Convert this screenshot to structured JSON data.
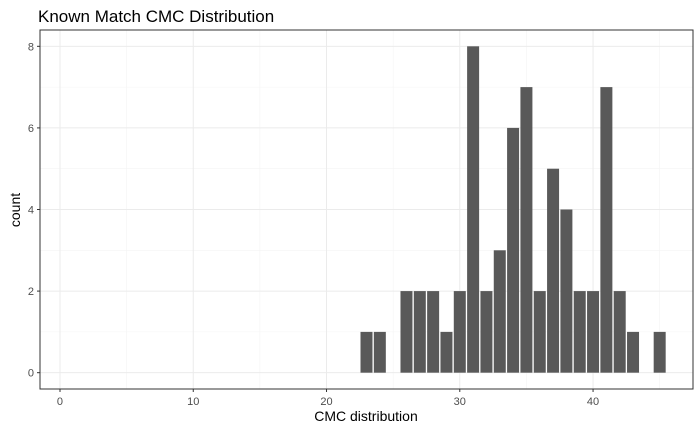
{
  "chart_data": {
    "type": "bar",
    "title": "Known Match CMC Distribution",
    "xlabel": "CMC distribution",
    "ylabel": "count",
    "xlim": [
      -1.5,
      47.5
    ],
    "ylim": [
      -0.4,
      8.4
    ],
    "x_ticks": [
      0,
      10,
      20,
      30,
      40
    ],
    "y_ticks": [
      0,
      2,
      4,
      6,
      8
    ],
    "grid": true,
    "bar_color": "#595959",
    "x": [
      23,
      24,
      26,
      27,
      28,
      29,
      30,
      31,
      32,
      33,
      34,
      35,
      36,
      37,
      38,
      39,
      40,
      41,
      42,
      43,
      45
    ],
    "values": [
      1,
      1,
      2,
      2,
      2,
      1,
      2,
      8,
      2,
      3,
      6,
      7,
      2,
      5,
      4,
      2,
      2,
      7,
      2,
      1,
      1
    ]
  }
}
